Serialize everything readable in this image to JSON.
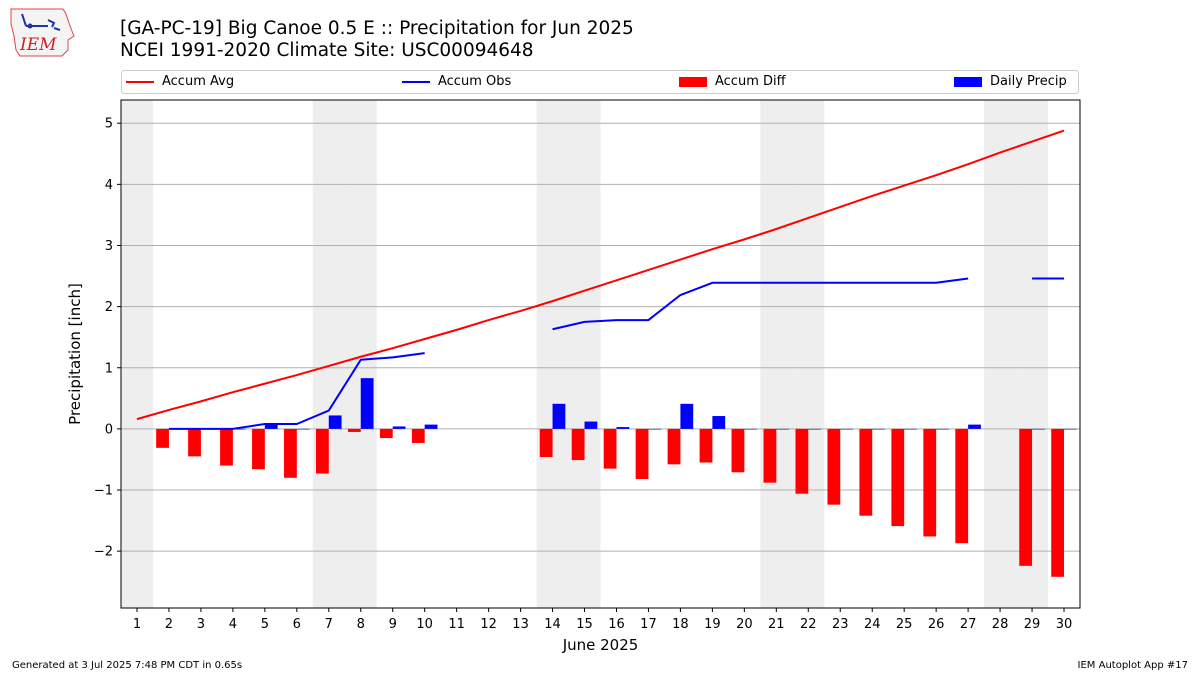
{
  "header": {
    "title_line1": "[GA-PC-19] Big Canoe 0.5 E :: Precipitation for Jun 2025",
    "title_line2": "NCEI 1991-2020 Climate Site: USC00094648",
    "logo_text": "IEM"
  },
  "legend": [
    {
      "label": "Accum Avg",
      "kind": "line",
      "color": "#ff0000"
    },
    {
      "label": "Accum Obs",
      "kind": "line",
      "color": "#0000ff"
    },
    {
      "label": "Accum Diff",
      "kind": "bar",
      "color": "#ff0000"
    },
    {
      "label": "Daily Precip",
      "kind": "bar",
      "color": "#0000ff"
    }
  ],
  "footer": {
    "generated": "Generated at 3 Jul 2025 7:48 PM CDT in 0.65s",
    "app": "IEM Autoplot App #17"
  },
  "chart_data": {
    "type": "bar",
    "xlabel": "June 2025",
    "ylabel": "Precipitation [inch]",
    "xlim": [
      0.5,
      30.5
    ],
    "ylim": [
      -2.93,
      5.38
    ],
    "yticks": [
      -2,
      -1,
      0,
      1,
      2,
      3,
      4,
      5
    ],
    "ytick_labels": [
      "−2",
      "−1",
      "0",
      "1",
      "2",
      "3",
      "4",
      "5"
    ],
    "days": [
      1,
      2,
      3,
      4,
      5,
      6,
      7,
      8,
      9,
      10,
      11,
      12,
      13,
      14,
      15,
      16,
      17,
      18,
      19,
      20,
      21,
      22,
      23,
      24,
      25,
      26,
      27,
      28,
      29,
      30
    ],
    "weekend_shaded_days": [
      1,
      7,
      8,
      14,
      15,
      21,
      22,
      28,
      29
    ],
    "grid": "horizontal",
    "series": [
      {
        "name": "Accum Avg",
        "kind": "line",
        "color": "#ff0000",
        "values": [
          0.16,
          0.31,
          0.45,
          0.6,
          0.74,
          0.88,
          1.03,
          1.18,
          1.32,
          1.47,
          1.62,
          1.78,
          1.93,
          2.09,
          2.26,
          2.43,
          2.6,
          2.77,
          2.94,
          3.1,
          3.27,
          3.45,
          3.63,
          3.81,
          3.98,
          4.15,
          4.33,
          4.52,
          4.7,
          4.88
        ]
      },
      {
        "name": "Accum Obs",
        "kind": "line",
        "color": "#0000ff",
        "values": [
          null,
          0.0,
          0.0,
          0.0,
          0.08,
          0.08,
          0.3,
          1.13,
          1.17,
          1.24,
          null,
          null,
          null,
          1.63,
          1.75,
          1.78,
          1.78,
          2.19,
          2.39,
          2.39,
          2.39,
          2.39,
          2.39,
          2.39,
          2.39,
          2.39,
          2.46,
          null,
          2.46,
          2.46
        ]
      },
      {
        "name": "Accum Diff",
        "kind": "bar",
        "color": "#ff0000",
        "values": [
          null,
          -0.31,
          -0.45,
          -0.6,
          -0.66,
          -0.8,
          -0.73,
          -0.05,
          -0.15,
          -0.23,
          null,
          null,
          null,
          -0.46,
          -0.51,
          -0.65,
          -0.82,
          -0.58,
          -0.55,
          -0.71,
          -0.88,
          -1.06,
          -1.24,
          -1.42,
          -1.59,
          -1.76,
          -1.87,
          null,
          -2.24,
          -2.42
        ]
      },
      {
        "name": "Daily Precip",
        "kind": "bar",
        "color": "#0000ff",
        "values": [
          null,
          0.0,
          0.0,
          0.0,
          0.08,
          0.0,
          0.22,
          0.83,
          0.04,
          0.07,
          null,
          null,
          null,
          0.41,
          0.12,
          0.03,
          0.0,
          0.41,
          0.21,
          0.0,
          0.0,
          0.0,
          0.0,
          0.0,
          0.0,
          0.0,
          0.07,
          null,
          0.0,
          0.0
        ]
      }
    ]
  }
}
